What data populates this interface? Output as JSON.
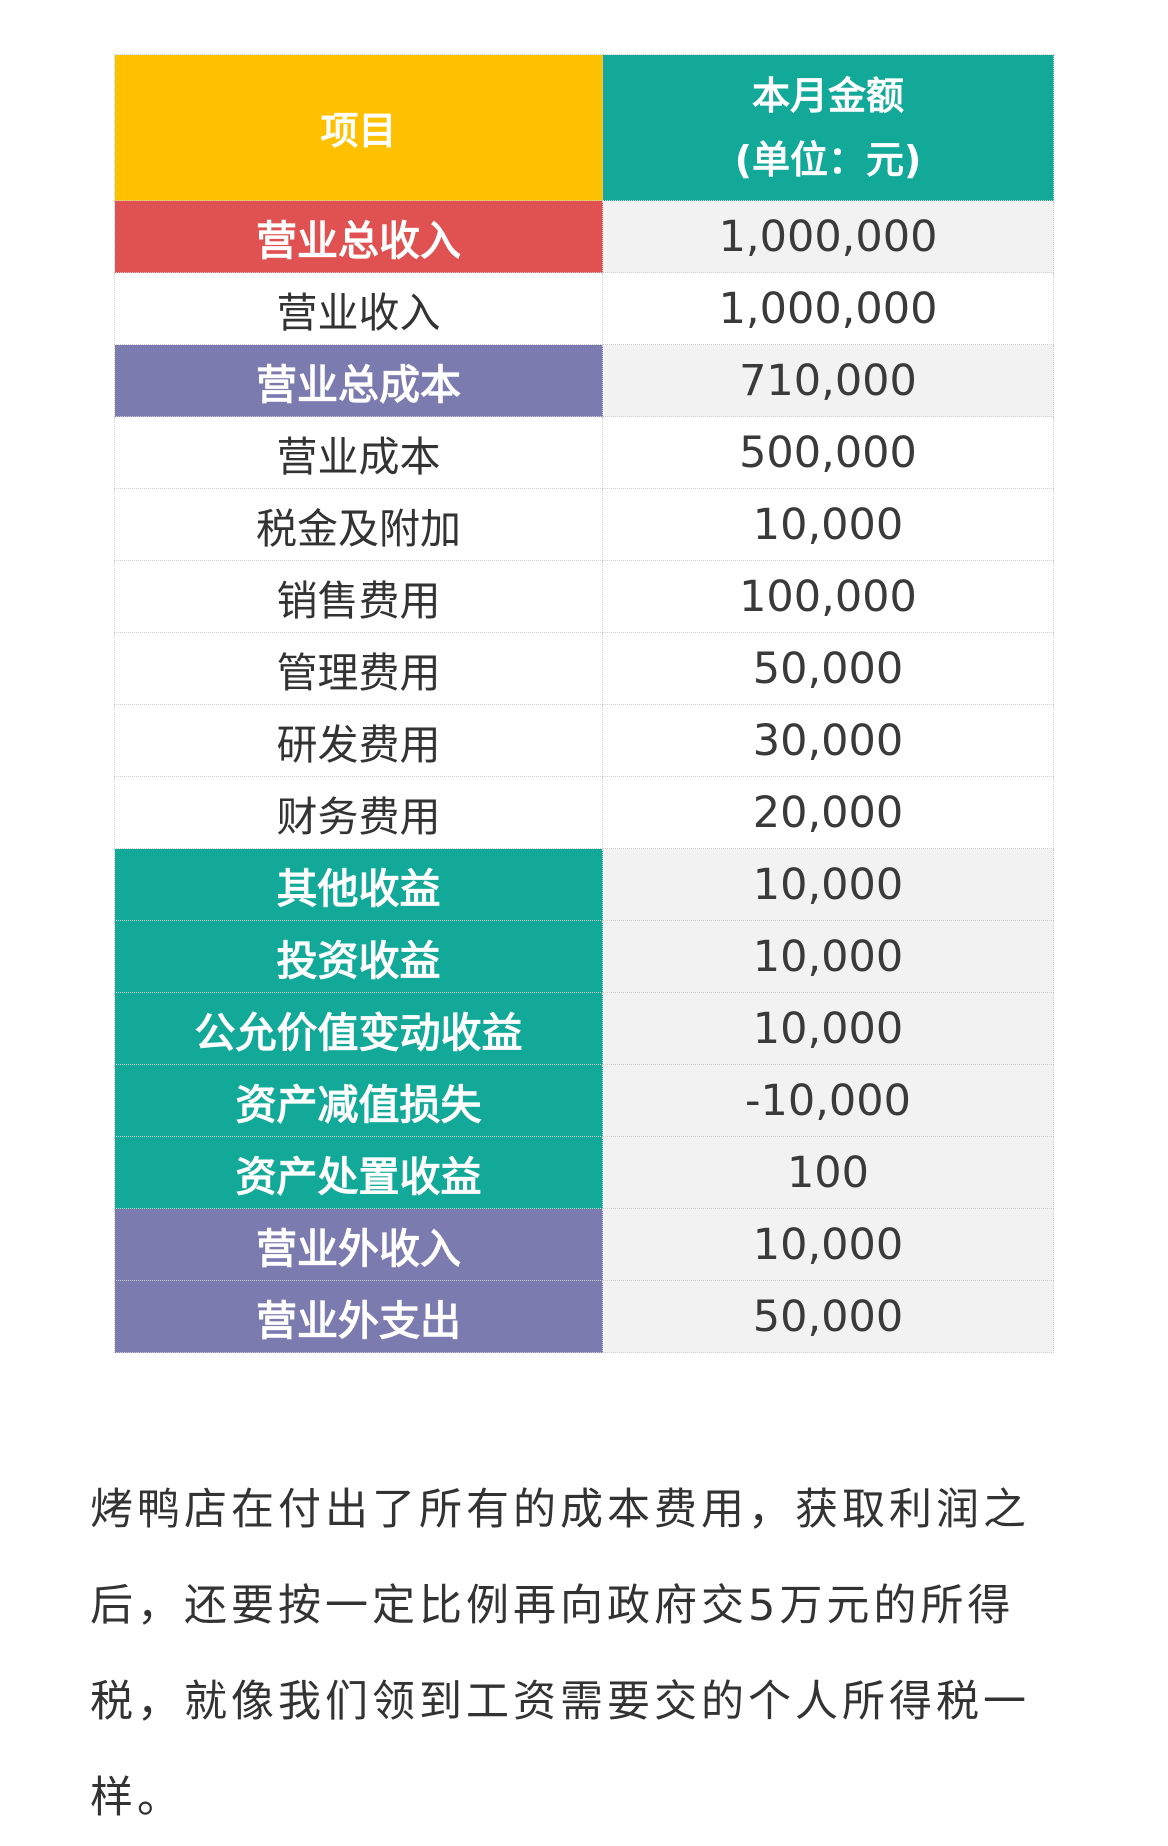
{
  "colors": {
    "header_item": "#FFC000",
    "header_amount": "#13A999",
    "red": "#E05252",
    "purple": "#7B7BB0",
    "teal": "#13A999",
    "shade": "#f2f2f2"
  },
  "table": {
    "header": {
      "item": "项目",
      "amount_line1": "本月金额",
      "amount_line2": "(单位：元)"
    },
    "rows": [
      {
        "item": "营业总收入",
        "amount": "1,000,000",
        "highlight": "red"
      },
      {
        "item": "营业收入",
        "amount": "1,000,000",
        "highlight": ""
      },
      {
        "item": "营业总成本",
        "amount": "710,000",
        "highlight": "purple"
      },
      {
        "item": "营业成本",
        "amount": "500,000",
        "highlight": ""
      },
      {
        "item": "税金及附加",
        "amount": "10,000",
        "highlight": ""
      },
      {
        "item": "销售费用",
        "amount": "100,000",
        "highlight": ""
      },
      {
        "item": "管理费用",
        "amount": "50,000",
        "highlight": ""
      },
      {
        "item": "研发费用",
        "amount": "30,000",
        "highlight": ""
      },
      {
        "item": "财务费用",
        "amount": "20,000",
        "highlight": ""
      },
      {
        "item": "其他收益",
        "amount": "10,000",
        "highlight": "teal"
      },
      {
        "item": "投资收益",
        "amount": "10,000",
        "highlight": "teal"
      },
      {
        "item": "公允价值变动收益",
        "amount": "10,000",
        "highlight": "teal"
      },
      {
        "item": "资产减值损失",
        "amount": "-10,000",
        "highlight": "teal"
      },
      {
        "item": "资产处置收益",
        "amount": "100",
        "highlight": "teal"
      },
      {
        "item": "营业外收入",
        "amount": "10,000",
        "highlight": "purple"
      },
      {
        "item": "营业外支出",
        "amount": "50,000",
        "highlight": "purple"
      }
    ]
  },
  "paragraph": "烤鸭店在付出了所有的成本费用，获取利润之后，还要按一定比例再向政府交5万元的所得税，就像我们领到工资需要交的个人所得税一样。"
}
